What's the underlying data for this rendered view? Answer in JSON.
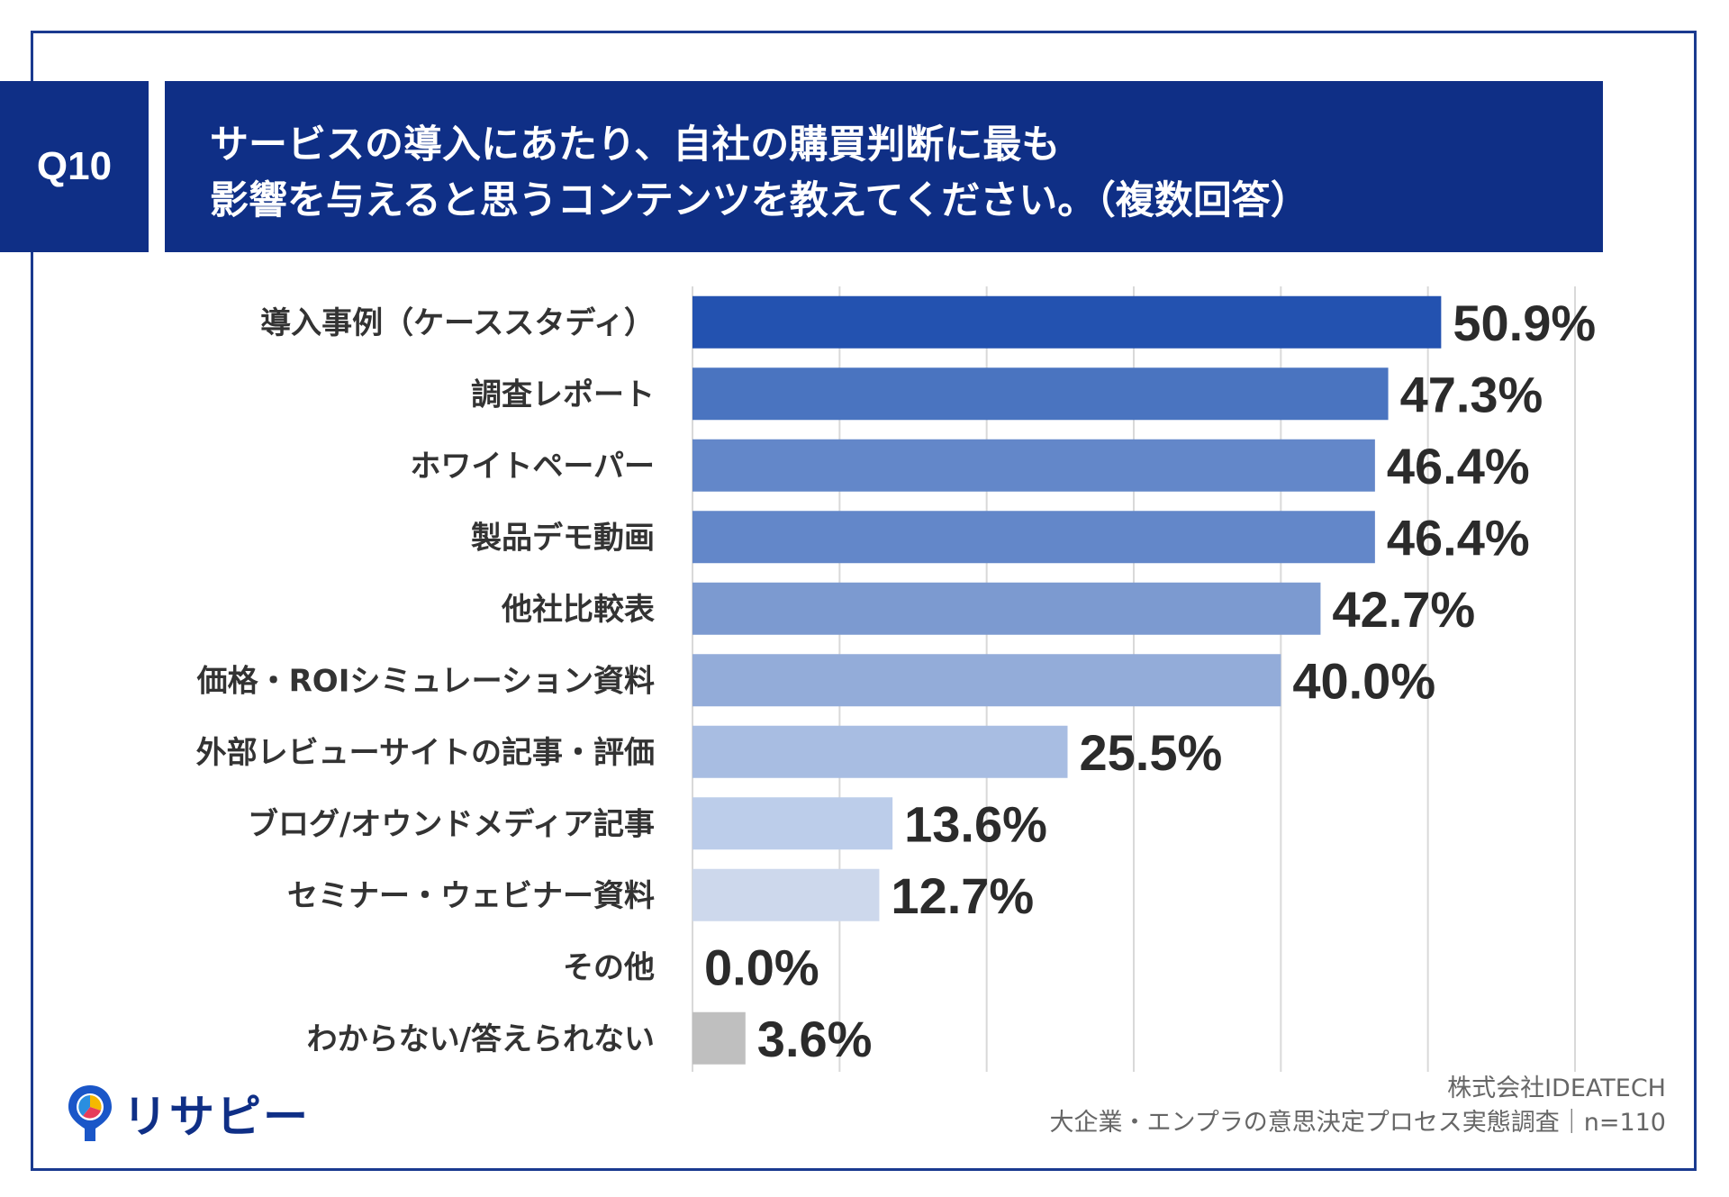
{
  "header": {
    "badge": "Q10",
    "title_line1": "サービスの導入にあたり、自社の購買判断に最も",
    "title_line2": "影響を与えると思うコンテンツを教えてください。（複数回答）"
  },
  "chart_data": {
    "type": "bar",
    "orientation": "horizontal",
    "categories": [
      "導入事例（ケーススタディ）",
      "調査レポート",
      "ホワイトペーパー",
      "製品デモ動画",
      "他社比較表",
      "価格・ROIシミュレーション資料",
      "外部レビューサイトの記事・評価",
      "ブログ/オウンドメディア記事",
      "セミナー・ウェビナー資料",
      "その他",
      "わからない/答えられない"
    ],
    "values": [
      50.9,
      47.3,
      46.4,
      46.4,
      42.7,
      40.0,
      25.5,
      13.6,
      12.7,
      0.0,
      3.6
    ],
    "value_labels": [
      "50.9%",
      "47.3%",
      "46.4%",
      "46.4%",
      "42.7%",
      "40.0%",
      "25.5%",
      "13.6%",
      "12.7%",
      "0.0%",
      "3.6%"
    ],
    "colors": [
      "#2352b0",
      "#4a74c0",
      "#6387c9",
      "#6387c9",
      "#7c9ad0",
      "#93acd9",
      "#a8bde2",
      "#bccdea",
      "#cdd8ec",
      "#dde4f2",
      "#bfbfbf"
    ],
    "xlim": [
      0,
      60
    ],
    "grid": true
  },
  "footer": {
    "company": "株式会社IDEATECH",
    "survey": "大企業・エンプラの意思決定プロセス実態調査｜n=110"
  },
  "logo": {
    "text": "リサピー"
  }
}
